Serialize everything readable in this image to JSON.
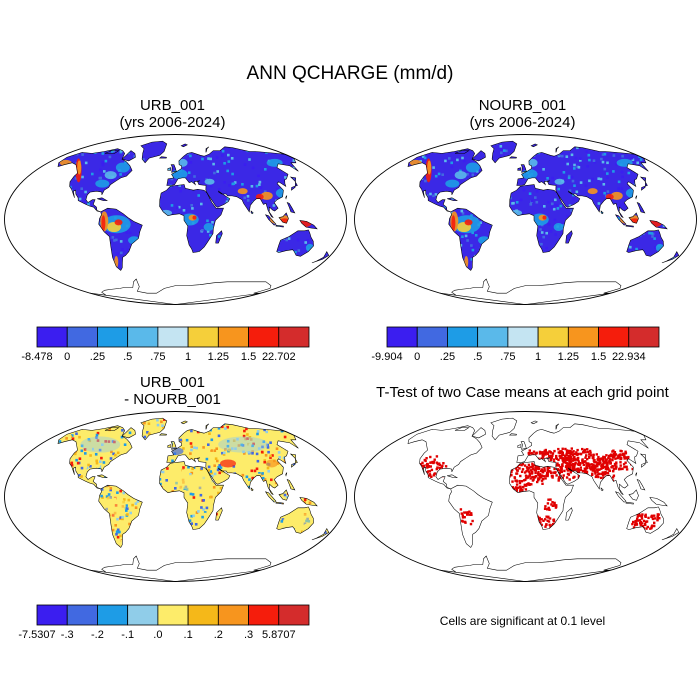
{
  "title": "ANN QCHARGE (mm/d)",
  "panels": [
    {
      "id": "p1",
      "title_line1": "URB_001",
      "title_line2": "(yrs 2006-2024)"
    },
    {
      "id": "p2",
      "title_line1": "NOURB_001",
      "title_line2": "(yrs 2006-2024)"
    },
    {
      "id": "p3",
      "title_line1": "URB_001",
      "title_line2": "- NOURB_001"
    },
    {
      "id": "p4",
      "title_line1": "T-Test of two Case means at each grid point",
      "title_line2": ""
    }
  ],
  "significance_note": "Cells are significant at 0.1 level",
  "chart_data": [
    {
      "type": "heatmap",
      "title": "URB_001 (yrs 2006-2024)",
      "variable": "QCHARGE",
      "units": "mm/d",
      "colorbar": {
        "labels": [
          "-8.478",
          "0",
          ".25",
          ".5",
          ".75",
          "1",
          "1.25",
          "1.5",
          "22.702"
        ],
        "colors": [
          "#3b1ef0",
          "#4169e1",
          "#1e9ce6",
          "#5ab9ea",
          "#c4e4f2",
          "#f5cf3a",
          "#f7951e",
          "#f51d0c",
          "#d42c2c"
        ]
      }
    },
    {
      "type": "heatmap",
      "title": "NOURB_001 (yrs 2006-2024)",
      "variable": "QCHARGE",
      "units": "mm/d",
      "colorbar": {
        "labels": [
          "-9.904",
          "0",
          ".25",
          ".5",
          ".75",
          "1",
          "1.25",
          "1.5",
          "22.934"
        ],
        "colors": [
          "#3b1ef0",
          "#4169e1",
          "#1e9ce6",
          "#5ab9ea",
          "#c4e4f2",
          "#f5cf3a",
          "#f7951e",
          "#f51d0c",
          "#d42c2c"
        ]
      }
    },
    {
      "type": "heatmap",
      "title": "URB_001 - NOURB_001",
      "variable": "QCHARGE difference",
      "units": "mm/d",
      "colorbar": {
        "labels": [
          "-7.5307",
          "-.3",
          "-.2",
          "-.1",
          ".0",
          ".1",
          ".2",
          ".3",
          "5.8707"
        ],
        "colors": [
          "#3b1ef0",
          "#4169e1",
          "#1e9ce6",
          "#90cde9",
          "#fdec6a",
          "#f5b819",
          "#f7951e",
          "#f51d0c",
          "#d42c2c"
        ]
      }
    },
    {
      "type": "heatmap",
      "title": "T-Test of two Case means at each grid point",
      "note": "Cells are significant at 0.1 level",
      "significance_level": 0.1,
      "marker_color": "#e00000"
    }
  ]
}
